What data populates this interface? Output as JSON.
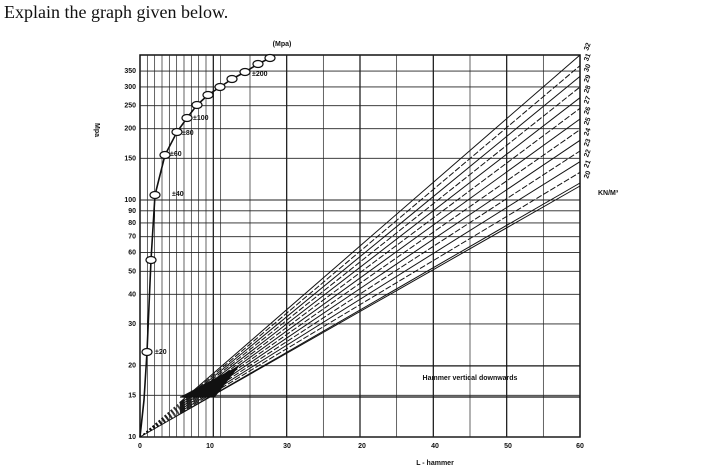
{
  "question": "Explain the graph given below.",
  "graph": {
    "top_unit": "(Mpa)",
    "y_label": "Mpa",
    "x_label": "L - hammer",
    "density_unit": "KN/M³",
    "note": "Hammer vertical downwards",
    "y_ticks": [
      "350",
      "300",
      "250",
      "200",
      "150",
      "100",
      "90",
      "80",
      "70",
      "60",
      "50",
      "40",
      "30",
      "20",
      "15",
      "10"
    ],
    "x_ticks": [
      "0",
      "10",
      "30",
      "20",
      "40",
      "50",
      "60"
    ],
    "density_labels": [
      "32",
      "31",
      "30",
      "29",
      "28",
      "27",
      "26",
      "25",
      "24",
      "23",
      "22",
      "21",
      "20"
    ],
    "scatter_labels": [
      "±20",
      "±40",
      "±60",
      "±80",
      "±100",
      "±200"
    ]
  }
}
